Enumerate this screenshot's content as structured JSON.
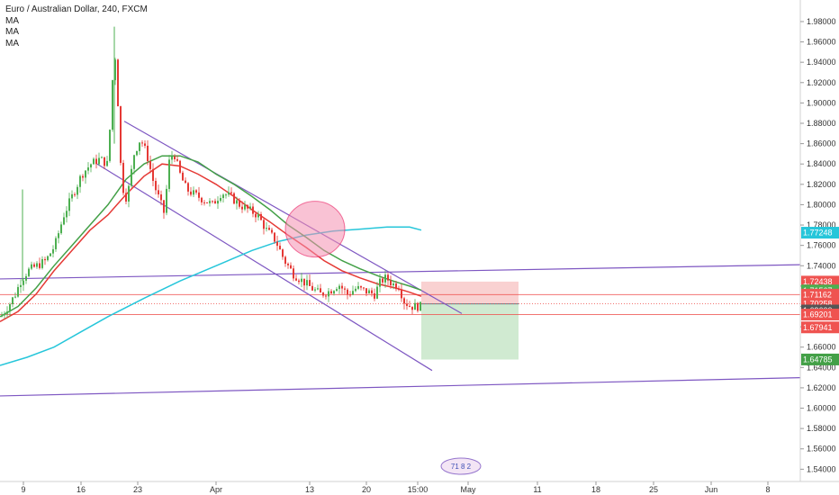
{
  "header": {
    "symbol_title": "Euro / Australian Dollar, 240, FXCM",
    "indicators": [
      "MA",
      "MA",
      "MA"
    ]
  },
  "colors": {
    "up": "#26a69a",
    "down": "#ef5350",
    "candle_up": "#4caf50",
    "candle_down": "#e53935",
    "ma_fast": "#e53935",
    "ma_mid": "#43a047",
    "ma_slow": "#26c6da",
    "trendline": "#7e57c2",
    "circle_fill": "#f48fb1",
    "stop_zone": "#f8c9c9",
    "target_zone": "#c8e6c9",
    "entry_line": "#607d8b"
  },
  "chart_data": {
    "type": "candlestick",
    "title": "Euro / Australian Dollar, 240, FXCM",
    "ylim": [
      1.535,
      1.995
    ],
    "y_ticks": [
      "1.98000",
      "1.96000",
      "1.94000",
      "1.92000",
      "1.90000",
      "1.88000",
      "1.86000",
      "1.84000",
      "1.82000",
      "1.80000",
      "1.78000",
      "1.76000",
      "1.74000",
      "1.72000",
      "1.70000",
      "1.68000",
      "1.66000",
      "1.64000",
      "1.62000",
      "1.60000",
      "1.58000",
      "1.56000",
      "1.54000"
    ],
    "x_ticks": [
      "9",
      "16",
      "23",
      "Apr",
      "13",
      "20",
      "15:00",
      "May",
      "11",
      "18",
      "25",
      "Jun",
      "8"
    ],
    "price_badges": [
      {
        "label": "1.77248",
        "value": 1.77248,
        "color": "#26c6da"
      },
      {
        "label": "1.72438",
        "value": 1.72438,
        "color": "#ef5350"
      },
      {
        "label": "1.71567",
        "value": 1.71567,
        "color": "#4caf50"
      },
      {
        "label": "1.71162",
        "value": 1.71162,
        "color": "#ef5350"
      },
      {
        "label": "1.70258",
        "value": 1.70258,
        "color": "#ef5350"
      },
      {
        "label": "1.69600",
        "value": 1.696,
        "color": "#555555"
      },
      {
        "label": "1.69201",
        "value": 1.69201,
        "color": "#ef5350"
      },
      {
        "label": "1.67941",
        "value": 1.67941,
        "color": "#ef5350"
      },
      {
        "label": "1.64785",
        "value": 1.64785,
        "color": "#43a047"
      }
    ],
    "price_path": [
      [
        0,
        1.69
      ],
      [
        8,
        1.7
      ],
      [
        16,
        1.712
      ],
      [
        22,
        1.725
      ],
      [
        30,
        1.735
      ],
      [
        40,
        1.74
      ],
      [
        50,
        1.745
      ],
      [
        60,
        1.76
      ],
      [
        70,
        1.79
      ],
      [
        80,
        1.81
      ],
      [
        90,
        1.83
      ],
      [
        100,
        1.84
      ],
      [
        110,
        1.845
      ],
      [
        118,
        1.84
      ],
      [
        122,
        1.885
      ],
      [
        126,
        1.96
      ],
      [
        130,
        1.9
      ],
      [
        134,
        1.82
      ],
      [
        140,
        1.805
      ],
      [
        148,
        1.85
      ],
      [
        155,
        1.865
      ],
      [
        162,
        1.85
      ],
      [
        170,
        1.82
      ],
      [
        176,
        1.805
      ],
      [
        182,
        1.79
      ],
      [
        186,
        1.84
      ],
      [
        192,
        1.852
      ],
      [
        198,
        1.832
      ],
      [
        206,
        1.815
      ],
      [
        215,
        1.81
      ],
      [
        225,
        1.805
      ],
      [
        235,
        1.8
      ],
      [
        245,
        1.812
      ],
      [
        255,
        1.808
      ],
      [
        265,
        1.8
      ],
      [
        275,
        1.795
      ],
      [
        285,
        1.79
      ],
      [
        295,
        1.775
      ],
      [
        305,
        1.765
      ],
      [
        315,
        1.745
      ],
      [
        325,
        1.732
      ],
      [
        335,
        1.725
      ],
      [
        345,
        1.718
      ],
      [
        355,
        1.712
      ],
      [
        365,
        1.715
      ],
      [
        375,
        1.722
      ],
      [
        385,
        1.712
      ],
      [
        395,
        1.718
      ],
      [
        405,
        1.715
      ],
      [
        415,
        1.712
      ],
      [
        422,
        1.725
      ],
      [
        428,
        1.728
      ],
      [
        435,
        1.722
      ],
      [
        442,
        1.72
      ],
      [
        448,
        1.705
      ],
      [
        455,
        1.7
      ],
      [
        462,
        1.7
      ],
      [
        468,
        1.7
      ]
    ],
    "ma_slow_path": [
      [
        0,
        1.642
      ],
      [
        30,
        1.65
      ],
      [
        60,
        1.66
      ],
      [
        90,
        1.675
      ],
      [
        120,
        1.69
      ],
      [
        160,
        1.708
      ],
      [
        200,
        1.725
      ],
      [
        240,
        1.74
      ],
      [
        280,
        1.755
      ],
      [
        310,
        1.764
      ],
      [
        340,
        1.77
      ],
      [
        370,
        1.774
      ],
      [
        400,
        1.776
      ],
      [
        430,
        1.778
      ],
      [
        455,
        1.778
      ],
      [
        468,
        1.775
      ]
    ],
    "ma_mid_path": [
      [
        0,
        1.69
      ],
      [
        20,
        1.7
      ],
      [
        40,
        1.718
      ],
      [
        60,
        1.74
      ],
      [
        80,
        1.76
      ],
      [
        100,
        1.78
      ],
      [
        120,
        1.8
      ],
      [
        140,
        1.825
      ],
      [
        160,
        1.84
      ],
      [
        180,
        1.848
      ],
      [
        200,
        1.848
      ],
      [
        220,
        1.842
      ],
      [
        240,
        1.83
      ],
      [
        260,
        1.82
      ],
      [
        280,
        1.808
      ],
      [
        300,
        1.795
      ],
      [
        320,
        1.78
      ],
      [
        340,
        1.768
      ],
      [
        360,
        1.755
      ],
      [
        380,
        1.745
      ],
      [
        400,
        1.737
      ],
      [
        420,
        1.73
      ],
      [
        440,
        1.724
      ],
      [
        455,
        1.72
      ],
      [
        468,
        1.716
      ]
    ],
    "ma_fast_path": [
      [
        0,
        1.685
      ],
      [
        20,
        1.695
      ],
      [
        40,
        1.712
      ],
      [
        60,
        1.735
      ],
      [
        80,
        1.755
      ],
      [
        100,
        1.775
      ],
      [
        120,
        1.79
      ],
      [
        140,
        1.81
      ],
      [
        160,
        1.828
      ],
      [
        180,
        1.84
      ],
      [
        200,
        1.838
      ],
      [
        220,
        1.83
      ],
      [
        240,
        1.82
      ],
      [
        260,
        1.808
      ],
      [
        280,
        1.795
      ],
      [
        300,
        1.783
      ],
      [
        320,
        1.77
      ],
      [
        340,
        1.758
      ],
      [
        360,
        1.745
      ],
      [
        380,
        1.735
      ],
      [
        400,
        1.728
      ],
      [
        420,
        1.722
      ],
      [
        440,
        1.718
      ],
      [
        455,
        1.714
      ],
      [
        468,
        1.71
      ]
    ],
    "channel_lines": [
      {
        "from": [
          138,
          1.882
        ],
        "to": [
          513,
          1.693
        ]
      },
      {
        "from": [
          108,
          1.84
        ],
        "to": [
          480,
          1.637
        ]
      },
      {
        "from": [
          0,
          1.727
        ],
        "to": [
          889,
          1.741
        ]
      },
      {
        "from": [
          0,
          1.612
        ],
        "to": [
          889,
          1.63
        ]
      }
    ],
    "position": {
      "entry": 1.7025,
      "stop": 1.7244,
      "target": 1.6478,
      "x_start": 468,
      "x_end": 576
    },
    "horizontal_levels": [
      {
        "value": 1.7116,
        "color": "#ef5350",
        "style": "solid"
      },
      {
        "value": 1.7026,
        "color": "#ef5350",
        "style": "dotted"
      },
      {
        "value": 1.692,
        "color": "#ef5350",
        "style": "solid"
      }
    ],
    "highlight_circle": {
      "cx": 350,
      "value": 1.776
    },
    "grid": false
  },
  "footer": {
    "logo_text": "71 8 2"
  }
}
